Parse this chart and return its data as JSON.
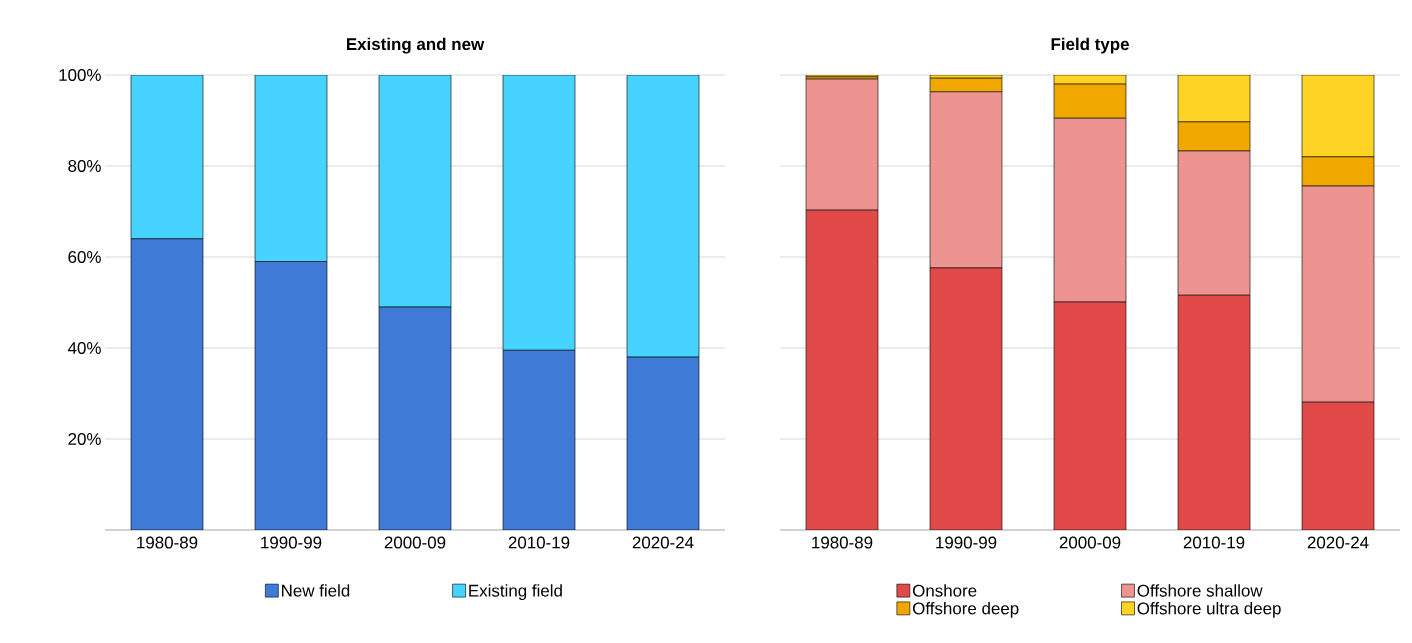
{
  "chart_data": [
    {
      "type": "bar",
      "title": "Existing and new",
      "stacked": true,
      "categories": [
        "1980-89",
        "1990-99",
        "2000-09",
        "2010-19",
        "2020-24"
      ],
      "series": [
        {
          "name": "New field",
          "color": "#3f7ad6",
          "values": [
            64,
            59,
            49,
            39.5,
            38
          ]
        },
        {
          "name": "Existing field",
          "color": "#47d3ff",
          "values": [
            36,
            41,
            51,
            60.5,
            62
          ]
        }
      ],
      "ylim": [
        0,
        100
      ],
      "yticks": [
        {
          "value": 20,
          "label": "20%"
        },
        {
          "value": 40,
          "label": "40%"
        },
        {
          "value": 60,
          "label": "60%"
        },
        {
          "value": 80,
          "label": "80%"
        },
        {
          "value": 100,
          "label": "100%"
        }
      ],
      "grid": "y",
      "legend": "bottom"
    },
    {
      "type": "bar",
      "title": "Field type",
      "stacked": true,
      "categories": [
        "1980-89",
        "1990-99",
        "2000-09",
        "2010-19",
        "2020-24"
      ],
      "series": [
        {
          "name": "Onshore",
          "color": "#e24a4a",
          "values": [
            70.3,
            57.6,
            50.1,
            51.6,
            28.1
          ]
        },
        {
          "name": "Offshore shallow",
          "color": "#ee9490",
          "values": [
            28.8,
            38.7,
            40.4,
            31.7,
            47.5
          ]
        },
        {
          "name": "Offshore deep",
          "color": "#f0a800",
          "values": [
            0.5,
            3.0,
            7.5,
            6.4,
            6.4
          ]
        },
        {
          "name": "Offshore ultra deep",
          "color": "#ffd324",
          "values": [
            0.4,
            0.7,
            2.0,
            10.3,
            18.0
          ]
        }
      ],
      "ylim": [
        0,
        100
      ],
      "yticks": [
        {
          "value": 20,
          "label": null
        },
        {
          "value": 40,
          "label": null
        },
        {
          "value": 60,
          "label": null
        },
        {
          "value": 80,
          "label": null
        },
        {
          "value": 100,
          "label": null
        }
      ],
      "grid": "y",
      "legend": "bottom",
      "tick_labels": "x"
    }
  ]
}
